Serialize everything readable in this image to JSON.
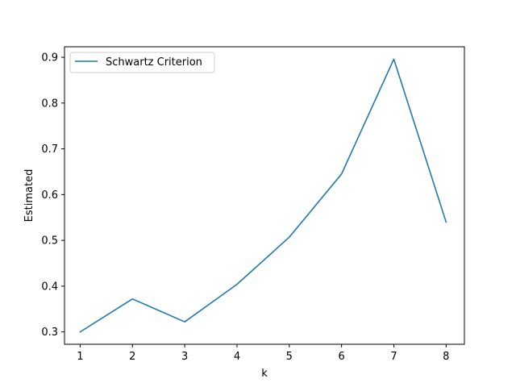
{
  "chart_data": {
    "type": "line",
    "x": [
      1,
      2,
      3,
      4,
      5,
      6,
      7,
      8
    ],
    "series": [
      {
        "name": "Schwartz Criterion",
        "values": [
          0.3,
          0.372,
          0.322,
          0.404,
          0.507,
          0.645,
          0.896,
          0.54
        ],
        "color": "#1f77b4"
      }
    ],
    "xlabel": "k",
    "ylabel": "Estimated",
    "xlim": [
      0.7,
      8.35
    ],
    "ylim": [
      0.273,
      0.923
    ],
    "xticks": [
      1,
      2,
      3,
      4,
      5,
      6,
      7,
      8
    ],
    "yticks": [
      0.3,
      0.4,
      0.5,
      0.6,
      0.7,
      0.8,
      0.9
    ],
    "ytick_labels": [
      "0.3",
      "0.4",
      "0.5",
      "0.6",
      "0.7",
      "0.8",
      "0.9"
    ],
    "legend": {
      "placement": "upper-left"
    },
    "grid": false
  }
}
